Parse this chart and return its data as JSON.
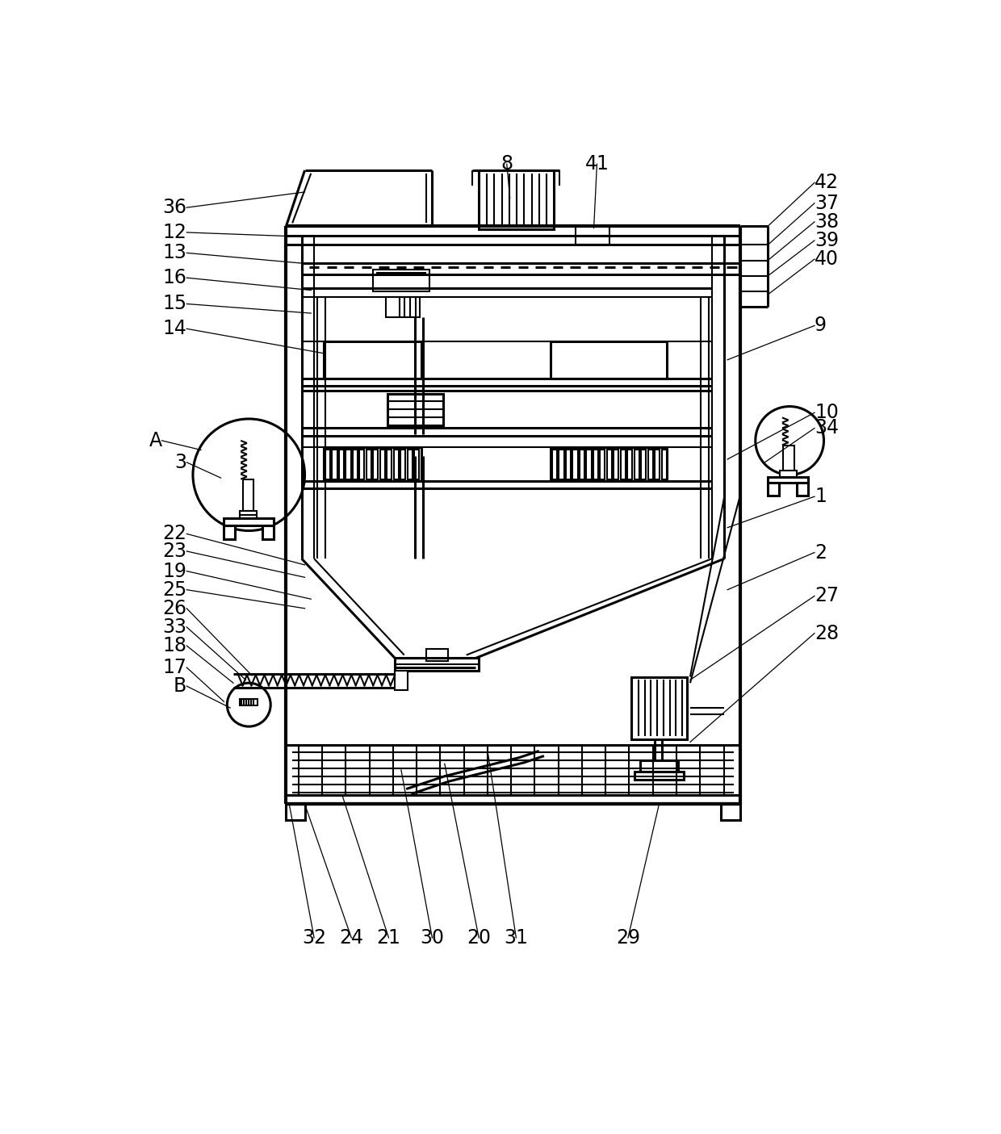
{
  "bg_color": "#ffffff",
  "line_color": "#000000",
  "lw": 1.5,
  "lw2": 2.2,
  "lw3": 3.0
}
